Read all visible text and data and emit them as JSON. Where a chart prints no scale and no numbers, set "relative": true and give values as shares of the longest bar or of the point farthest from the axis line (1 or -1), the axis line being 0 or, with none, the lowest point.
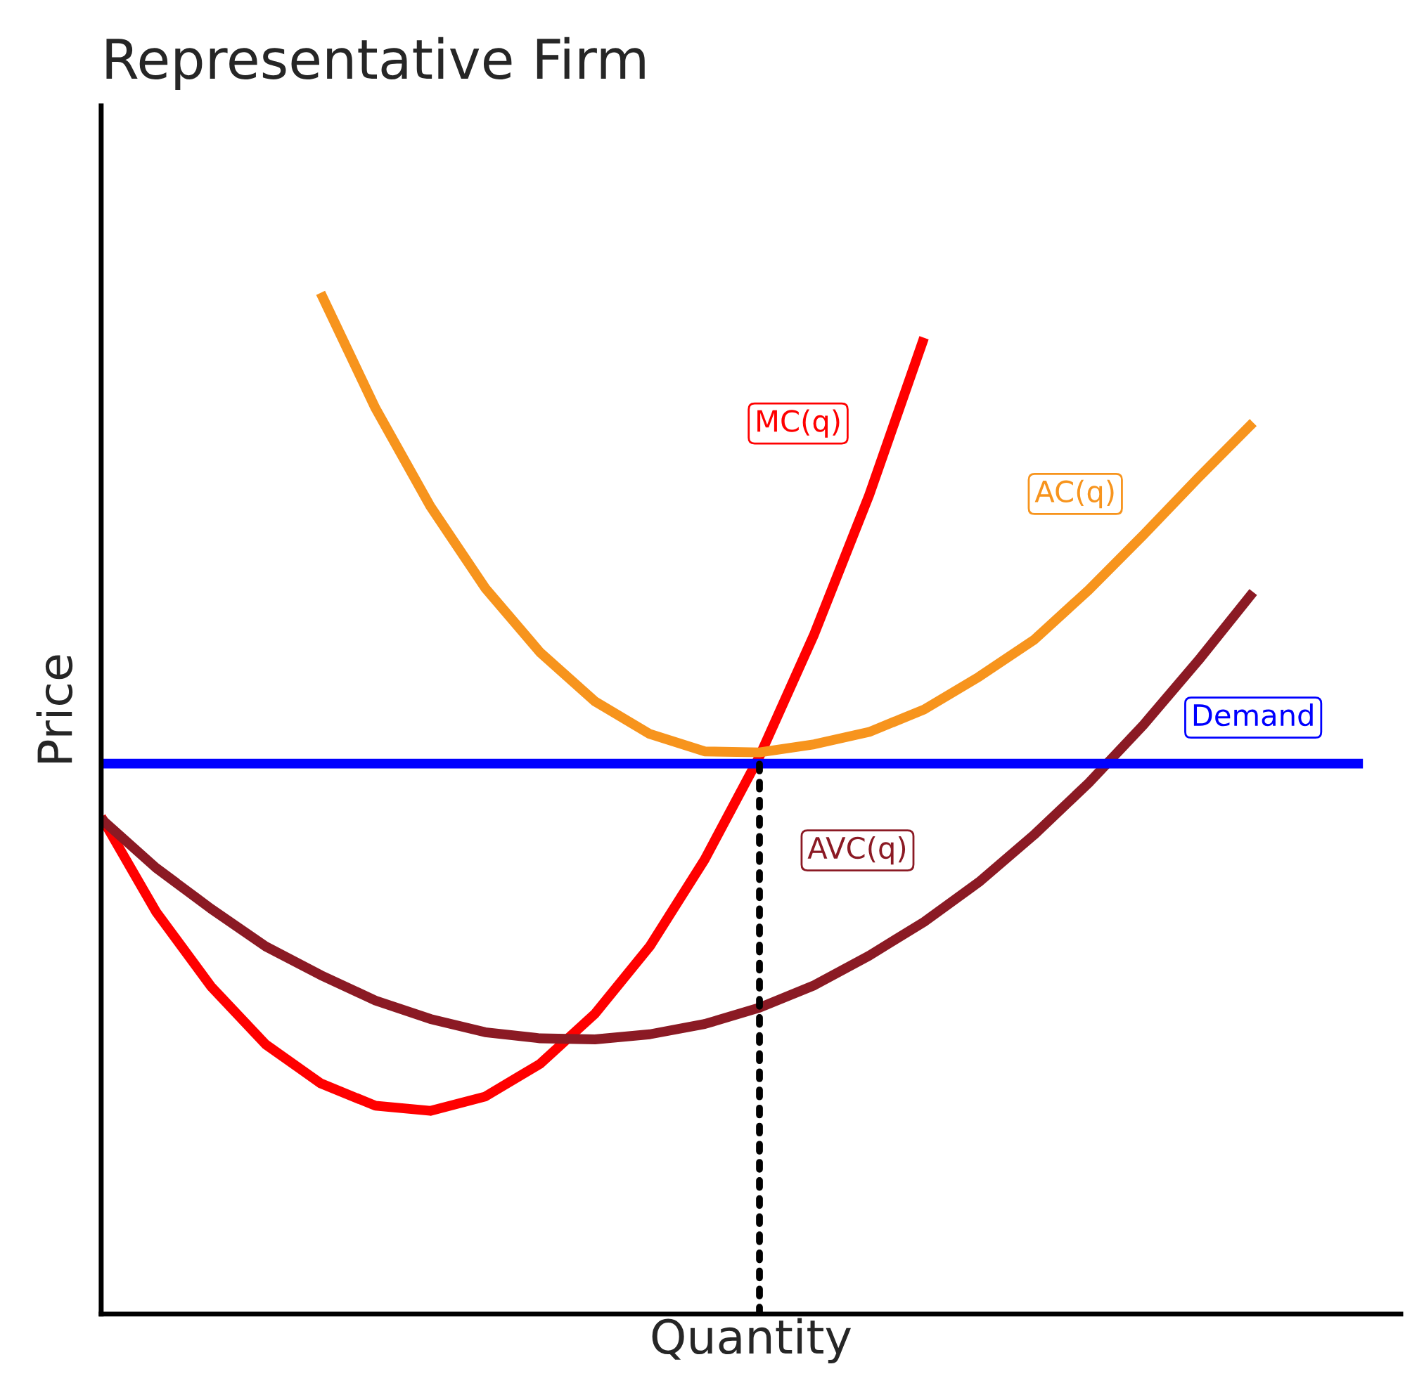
{
  "chart_data": {
    "type": "line",
    "title": "Representative Firm",
    "xlabel": "Quantity",
    "ylabel": "Price",
    "relative": true,
    "legend": false,
    "marker": "none",
    "line_style": "solid",
    "categories": [
      null,
      null,
      null,
      null,
      null,
      null,
      null,
      null,
      null,
      null,
      null,
      null,
      null,
      null,
      null,
      null,
      null,
      null,
      null,
      null,
      null,
      null,
      null,
      null
    ],
    "series": [
      {
        "name": "MC(q)",
        "color": "#ff0000",
        "values": [
          0.487,
          0.394,
          0.321,
          0.264,
          0.226,
          0.204,
          0.199,
          0.213,
          0.245,
          0.294,
          0.36,
          0.445,
          0.546,
          0.666,
          0.802,
          0.956,
          null,
          null,
          null,
          null,
          null,
          null,
          null,
          null
        ]
      },
      {
        "name": "AC(q)",
        "color": "#f7941d",
        "values": [
          null,
          null,
          null,
          null,
          1.0,
          0.887,
          0.791,
          0.711,
          0.648,
          0.6,
          0.568,
          0.551,
          0.55,
          0.558,
          0.57,
          0.592,
          0.624,
          0.66,
          0.709,
          0.763,
          0.819,
          0.873,
          null,
          null
        ]
      },
      {
        "name": "AVC(q)",
        "color": "#8b1a24",
        "values": [
          0.485,
          0.437,
          0.397,
          0.36,
          0.332,
          0.307,
          0.289,
          0.276,
          0.27,
          0.269,
          0.274,
          0.284,
          0.3,
          0.322,
          0.351,
          0.384,
          0.423,
          0.469,
          0.52,
          0.577,
          0.64,
          0.707,
          null,
          null
        ]
      },
      {
        "name": "Demand",
        "color": "#0000ff",
        "values": [
          0.539,
          0.539,
          0.539,
          0.539,
          0.539,
          0.539,
          0.539,
          0.539,
          0.539,
          0.539,
          0.539,
          0.539,
          0.539,
          0.539,
          0.539,
          0.539,
          0.539,
          0.539,
          0.539,
          0.539,
          0.539,
          0.539,
          0.539,
          0.539
        ]
      }
    ]
  }
}
